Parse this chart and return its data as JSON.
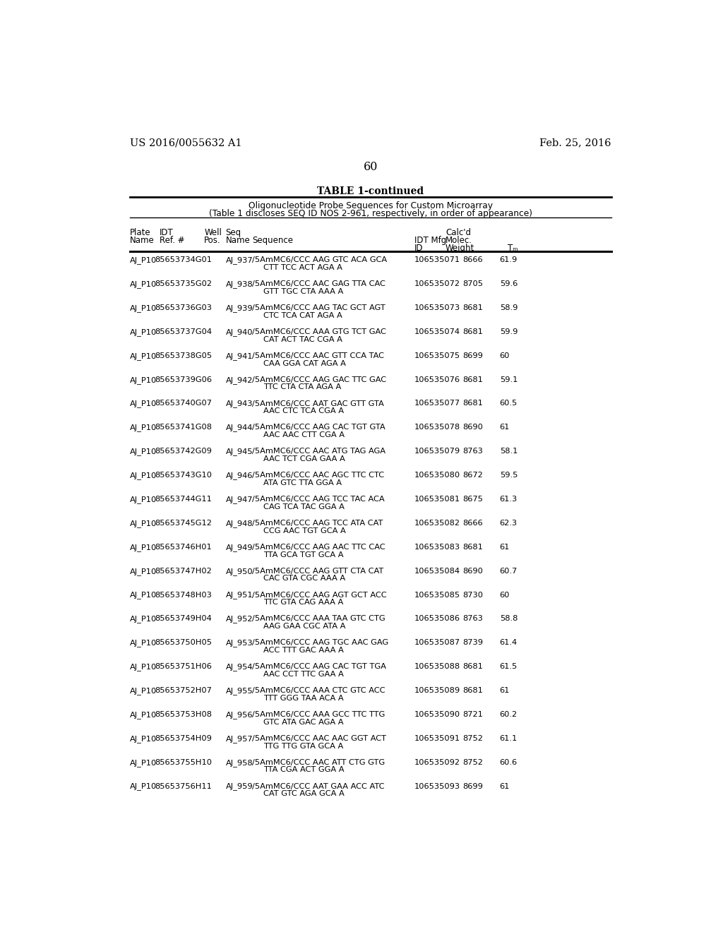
{
  "header_left": "US 2016/0055632 A1",
  "header_right": "Feb. 25, 2016",
  "page_number": "60",
  "table_title": "TABLE 1-continued",
  "table_subtitle1": "Oligonucleotide Probe Sequences for Custom Microarray",
  "table_subtitle2": "(Table 1 discloses SEQ ID NOS 2-961, respectively, in order of appearance)",
  "rows": [
    [
      "AJ_P10",
      "85653734G01",
      "AJ_937",
      "/5AmMC6/CCC AAG GTC ACA GCA",
      "CTT TCC ACT AGA A",
      "106535071",
      "8666",
      "61.9"
    ],
    [
      "AJ_P10",
      "85653735G02",
      "AJ_938",
      "/5AmMC6/CCC AAC GAG TTA CAC",
      "GTT TGC CTA AAA A",
      "106535072",
      "8705",
      "59.6"
    ],
    [
      "AJ_P10",
      "85653736G03",
      "AJ_939",
      "/5AmMC6/CCC AAG TAC GCT AGT",
      "CTC TCA CAT AGA A",
      "106535073",
      "8681",
      "58.9"
    ],
    [
      "AJ_P10",
      "85653737G04",
      "AJ_940",
      "/5AmMC6/CCC AAA GTG TCT GAC",
      "CAT ACT TAC CGA A",
      "106535074",
      "8681",
      "59.9"
    ],
    [
      "AJ_P10",
      "85653738G05",
      "AJ_941",
      "/5AmMC6/CCC AAC GTT CCA TAC",
      "CAA GGA CAT AGA A",
      "106535075",
      "8699",
      "60"
    ],
    [
      "AJ_P10",
      "85653739G06",
      "AJ_942",
      "/5AmMC6/CCC AAG GAC TTC GAC",
      "TTC CTA CTA AGA A",
      "106535076",
      "8681",
      "59.1"
    ],
    [
      "AJ_P10",
      "85653740G07",
      "AJ_943",
      "/5AmMC6/CCC AAT GAC GTT GTA",
      "AAC CTC TCA CGA A",
      "106535077",
      "8681",
      "60.5"
    ],
    [
      "AJ_P10",
      "85653741G08",
      "AJ_944",
      "/5AmMC6/CCC AAG CAC TGT GTA",
      "AAC AAC CTT CGA A",
      "106535078",
      "8690",
      "61"
    ],
    [
      "AJ_P10",
      "85653742G09",
      "AJ_945",
      "/5AmMC6/CCC AAC ATG TAG AGA",
      "AAC TCT CGA GAA A",
      "106535079",
      "8763",
      "58.1"
    ],
    [
      "AJ_P10",
      "85653743G10",
      "AJ_946",
      "/5AmMC6/CCC AAC AGC TTC CTC",
      "ATA GTC TTA GGA A",
      "106535080",
      "8672",
      "59.5"
    ],
    [
      "AJ_P10",
      "85653744G11",
      "AJ_947",
      "/5AmMC6/CCC AAG TCC TAC ACA",
      "CAG TCA TAC GGA A",
      "106535081",
      "8675",
      "61.3"
    ],
    [
      "AJ_P10",
      "85653745G12",
      "AJ_948",
      "/5AmMC6/CCC AAG TCC ATA CAT",
      "CCG AAC TGT GCA A",
      "106535082",
      "8666",
      "62.3"
    ],
    [
      "AJ_P10",
      "85653746H01",
      "AJ_949",
      "/5AmMC6/CCC AAG AAC TTC CAC",
      "TTA GCA TGT GCA A",
      "106535083",
      "8681",
      "61"
    ],
    [
      "AJ_P10",
      "85653747H02",
      "AJ_950",
      "/5AmMC6/CCC AAG GTT CTA CAT",
      "CAC GTA CGC AAA A",
      "106535084",
      "8690",
      "60.7"
    ],
    [
      "AJ_P10",
      "85653748H03",
      "AJ_951",
      "/5AmMC6/CCC AAG AGT GCT ACC",
      "TTC GTA CAG AAA A",
      "106535085",
      "8730",
      "60"
    ],
    [
      "AJ_P10",
      "85653749H04",
      "AJ_952",
      "/5AmMC6/CCC AAA TAA GTC CTG",
      "AAG GAA CGC ATA A",
      "106535086",
      "8763",
      "58.8"
    ],
    [
      "AJ_P10",
      "85653750H05",
      "AJ_953",
      "/5AmMC6/CCC AAG TGC AAC GAG",
      "ACC TTT GAC AAA A",
      "106535087",
      "8739",
      "61.4"
    ],
    [
      "AJ_P10",
      "85653751H06",
      "AJ_954",
      "/5AmMC6/CCC AAG CAC TGT TGA",
      "AAC CCT TTC GAA A",
      "106535088",
      "8681",
      "61.5"
    ],
    [
      "AJ_P10",
      "85653752H07",
      "AJ_955",
      "/5AmMC6/CCC AAA CTC GTC ACC",
      "TTT GGG TAA ACA A",
      "106535089",
      "8681",
      "61"
    ],
    [
      "AJ_P10",
      "85653753H08",
      "AJ_956",
      "/5AmMC6/CCC AAA GCC TTC TTG",
      "GTC ATA GAC AGA A",
      "106535090",
      "8721",
      "60.2"
    ],
    [
      "AJ_P10",
      "85653754H09",
      "AJ_957",
      "/5AmMC6/CCC AAC AAC GGT ACT",
      "TTG TTG GTA GCA A",
      "106535091",
      "8752",
      "61.1"
    ],
    [
      "AJ_P10",
      "85653755H10",
      "AJ_958",
      "/5AmMC6/CCC AAC ATT CTG GTG",
      "TTA CGA ACT GGA A",
      "106535092",
      "8752",
      "60.6"
    ],
    [
      "AJ_P10",
      "85653756H11",
      "AJ_959",
      "/5AmMC6/CCC AAT GAA ACC ATC",
      "CAT GTC AGA GCA A",
      "106535093",
      "8699",
      "61"
    ]
  ],
  "bg_color": "#ffffff",
  "text_color": "#000000"
}
